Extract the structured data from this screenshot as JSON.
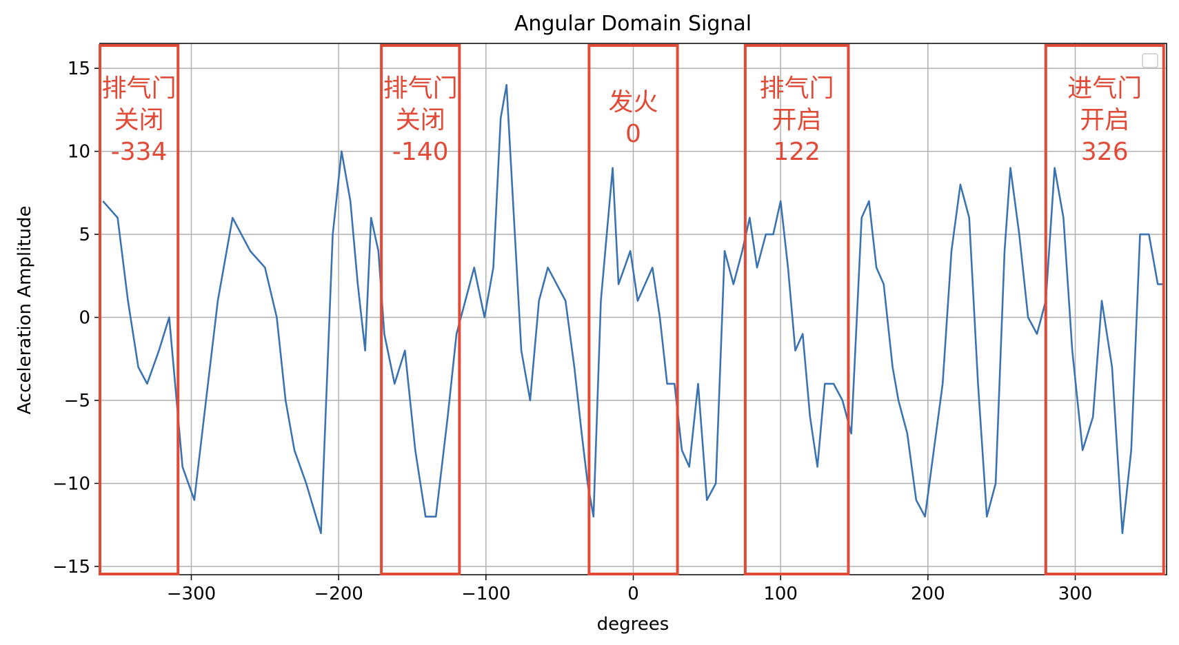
{
  "chart_data": {
    "type": "line",
    "title": "Angular Domain Signal",
    "xlabel": "degrees",
    "ylabel": "Acceleration Amplitude",
    "xlim": [
      -362,
      362
    ],
    "ylim": [
      -15.5,
      16.5
    ],
    "xticks": [
      -300,
      -200,
      -100,
      0,
      100,
      200,
      300
    ],
    "xtick_labels": [
      "−300",
      "−200",
      "−100",
      "0",
      "100",
      "200",
      "300"
    ],
    "yticks": [
      15,
      10,
      5,
      0,
      -5,
      -10,
      -15
    ],
    "ytick_labels": [
      "15",
      "10",
      "5",
      "0",
      "−5",
      "−10",
      "−15"
    ],
    "grid": true,
    "legend": "top-right (empty)",
    "series": [
      {
        "color": "#3b73b1",
        "x": [
          -360,
          -350,
          -343,
          -336,
          -330,
          -322,
          -315,
          -306,
          -298,
          -290,
          -282,
          -272,
          -260,
          -250,
          -242,
          -236,
          -230,
          -222,
          -212,
          -204,
          -198,
          -192,
          -187,
          -182,
          -178,
          -173,
          -169,
          -162,
          -155,
          -148,
          -141,
          -134,
          -126,
          -120,
          -114,
          -108,
          -101,
          -95,
          -90,
          -86,
          -81,
          -76,
          -70,
          -64,
          -58,
          -52,
          -46,
          -40,
          -35,
          -31,
          -27,
          -22,
          -18,
          -14,
          -10,
          -6,
          -2,
          3,
          8,
          13,
          18,
          23,
          28,
          33,
          38,
          44,
          50,
          56,
          62,
          68,
          74,
          79,
          84,
          90,
          95,
          100,
          105,
          110,
          115,
          120,
          125,
          130,
          136,
          142,
          148,
          155,
          160,
          165,
          170,
          176,
          180,
          186,
          192,
          198,
          204,
          210,
          216,
          222,
          228,
          234,
          240,
          246,
          252,
          256,
          262,
          268,
          274,
          280,
          286,
          292,
          298,
          305,
          312,
          318,
          325,
          332,
          338,
          344,
          350,
          356,
          360
        ],
        "y": [
          7,
          6,
          1,
          -3,
          -4,
          -2,
          0,
          -9,
          -11,
          -5,
          1,
          6,
          4,
          3,
          0,
          -5,
          -8,
          -10,
          -13,
          5,
          10,
          7,
          2,
          -2,
          6,
          4,
          -1,
          -4,
          -2,
          -8,
          -12,
          -12,
          -6,
          -1,
          1,
          3,
          0,
          3,
          12,
          14,
          6,
          -2,
          -5,
          1,
          3,
          2,
          1,
          -3,
          -7,
          -10,
          -12,
          1,
          5,
          9,
          2,
          3,
          4,
          1,
          2,
          3,
          0,
          -4,
          -4,
          -8,
          -9,
          -4,
          -11,
          -10,
          4,
          2,
          4,
          6,
          3,
          5,
          5,
          7,
          3,
          -2,
          -1,
          -6,
          -9,
          -4,
          -4,
          -5,
          -7,
          6,
          7,
          3,
          2,
          -3,
          -5,
          -7,
          -11,
          -12,
          -8,
          -4,
          4,
          8,
          6,
          -4,
          -12,
          -10,
          4,
          9,
          5,
          0,
          -1,
          1,
          9,
          6,
          -2,
          -8,
          -6,
          1,
          -3,
          -13,
          -8,
          5,
          5,
          2,
          2
        ]
      }
    ],
    "annotations": [
      {
        "x_range": [
          -362,
          -309
        ],
        "lines": [
          "排气门",
          "关闭",
          "-334"
        ]
      },
      {
        "x_range": [
          -171,
          -118
        ],
        "lines": [
          "排气门",
          "关闭",
          "-140"
        ]
      },
      {
        "x_range": [
          -30,
          30
        ],
        "lines": [
          "发火",
          "0"
        ]
      },
      {
        "x_range": [
          76,
          146
        ],
        "lines": [
          "排气门",
          "开启",
          "122"
        ]
      },
      {
        "x_range": [
          280,
          360
        ],
        "lines": [
          "进气门",
          "开启",
          "326"
        ]
      }
    ],
    "annotation_color": "#e14a36"
  }
}
